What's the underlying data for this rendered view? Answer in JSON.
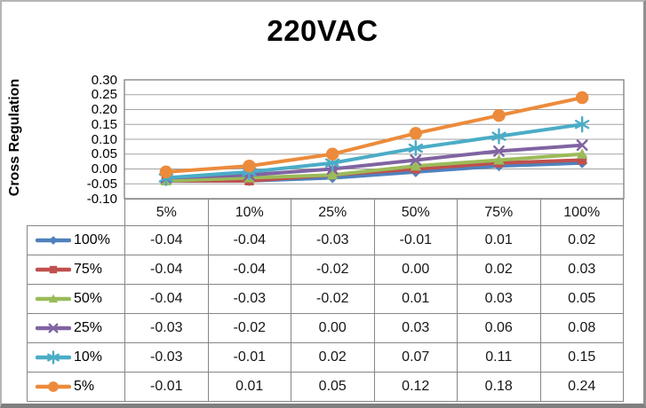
{
  "chart_data": {
    "type": "line",
    "title": "220VAC",
    "xlabel": "",
    "ylabel": "Cross Regulation",
    "categories": [
      "5%",
      "10%",
      "25%",
      "50%",
      "75%",
      "100%"
    ],
    "series": [
      {
        "name": "100%",
        "marker": "diamond",
        "color": "#4F81BD",
        "values": [
          -0.04,
          -0.04,
          -0.03,
          -0.01,
          0.01,
          0.02
        ]
      },
      {
        "name": "75%",
        "marker": "square",
        "color": "#C0504D",
        "values": [
          -0.04,
          -0.04,
          -0.02,
          0.0,
          0.02,
          0.03
        ]
      },
      {
        "name": "50%",
        "marker": "triangle",
        "color": "#9BBB59",
        "values": [
          -0.04,
          -0.03,
          -0.02,
          0.01,
          0.03,
          0.05
        ]
      },
      {
        "name": "25%",
        "marker": "x",
        "color": "#8064A2",
        "values": [
          -0.03,
          -0.02,
          0.0,
          0.03,
          0.06,
          0.08
        ]
      },
      {
        "name": "10%",
        "marker": "asterisk",
        "color": "#4BACC6",
        "values": [
          -0.03,
          -0.01,
          0.02,
          0.07,
          0.11,
          0.15
        ]
      },
      {
        "name": "5%",
        "marker": "circle",
        "color": "#EC8B3B",
        "values": [
          -0.01,
          0.01,
          0.05,
          0.12,
          0.18,
          0.24
        ]
      }
    ],
    "ylim": [
      -0.1,
      0.3
    ],
    "ytick_step": 0.05,
    "yticks": [
      "0.30",
      "0.25",
      "0.20",
      "0.15",
      "0.10",
      "0.05",
      "0.00",
      "-0.05",
      "-0.10"
    ],
    "grid": true,
    "gridline_color": "#A3A3A3",
    "plot_border_color": "#7F7F7F",
    "legend_position": "data-table-left",
    "value_decimals": 2
  }
}
